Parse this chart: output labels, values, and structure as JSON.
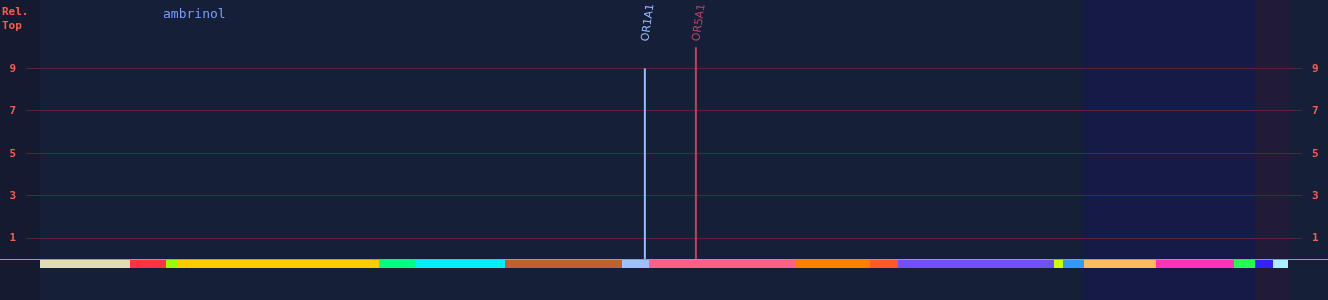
{
  "chart_data": {
    "type": "bar",
    "title": "ambrinol",
    "ylabel": "Rel.\nTop",
    "categories": [
      null,
      null,
      null,
      null,
      null,
      null,
      null,
      null,
      null,
      null,
      null,
      null,
      null,
      null,
      null,
      null,
      null,
      null,
      null,
      null,
      null,
      null,
      null,
      null,
      null,
      null,
      null,
      null,
      null,
      null,
      null,
      null,
      null,
      null,
      null,
      null,
      null,
      null,
      null,
      null,
      null,
      null,
      null,
      null,
      null,
      null,
      null,
      null,
      "OR1A1",
      null,
      null,
      null,
      "OR5A1",
      null,
      null,
      null,
      null,
      null,
      null,
      null,
      null,
      null,
      null,
      null,
      null,
      null,
      null,
      null,
      null,
      null,
      null,
      null,
      null,
      null,
      null,
      null,
      null,
      null,
      null,
      null,
      null,
      null,
      null,
      null,
      null,
      null,
      null,
      null,
      null,
      null,
      null,
      null,
      null,
      null,
      null,
      null,
      null,
      null,
      null,
      null
    ],
    "series": [
      {
        "color": "#9ab8ff",
        "values": [
          null,
          null,
          null,
          null,
          null,
          null,
          null,
          null,
          null,
          null,
          null,
          null,
          null,
          null,
          null,
          null,
          null,
          null,
          null,
          null,
          null,
          null,
          null,
          null,
          null,
          null,
          null,
          null,
          null,
          null,
          null,
          null,
          null,
          null,
          null,
          null,
          null,
          null,
          null,
          null,
          null,
          null,
          null,
          null,
          null,
          null,
          null,
          null,
          9,
          null,
          null,
          null,
          null,
          null,
          null,
          null,
          null,
          null,
          null,
          null,
          null,
          null,
          null,
          null,
          null,
          null,
          null,
          null,
          null,
          null,
          null,
          null,
          null,
          null,
          null,
          null,
          null,
          null,
          null,
          null,
          null,
          null,
          null,
          null,
          null,
          null,
          null,
          null,
          null,
          null,
          null,
          null,
          null,
          null,
          null,
          null,
          null,
          null,
          null,
          null
        ]
      },
      {
        "color": "#c0405e",
        "values": [
          null,
          null,
          null,
          null,
          null,
          null,
          null,
          null,
          null,
          null,
          null,
          null,
          null,
          null,
          null,
          null,
          null,
          null,
          null,
          null,
          null,
          null,
          null,
          null,
          null,
          null,
          null,
          null,
          null,
          null,
          null,
          null,
          null,
          null,
          null,
          null,
          null,
          null,
          null,
          null,
          null,
          null,
          null,
          null,
          null,
          null,
          null,
          null,
          null,
          null,
          null,
          null,
          10,
          null,
          null,
          null,
          null,
          null,
          null,
          null,
          null,
          null,
          null,
          null,
          null,
          null,
          null,
          null,
          null,
          null,
          null,
          null,
          null,
          null,
          null,
          null,
          null,
          null,
          null,
          null,
          null,
          null,
          null,
          null,
          null,
          null,
          null,
          null,
          null,
          null,
          null,
          null,
          null,
          null,
          null,
          null,
          null,
          null,
          null,
          null
        ]
      }
    ],
    "ylim": [
      0,
      10
    ],
    "yticks": [
      1,
      3,
      5,
      7,
      9
    ],
    "y2lim": [
      0,
      10
    ],
    "y2ticks": [
      1,
      3,
      5,
      7,
      9
    ],
    "grid": "y"
  }
}
